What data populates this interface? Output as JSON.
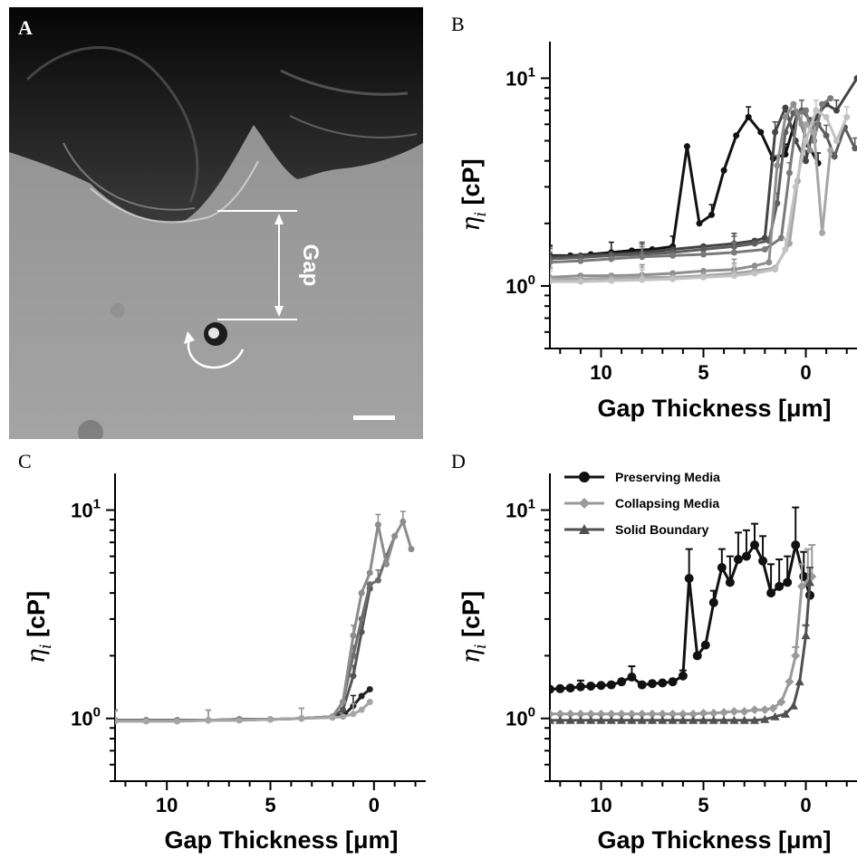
{
  "panels": {
    "A": {
      "letter": "A",
      "gap_label": "Gap"
    },
    "B": {
      "letter": "B"
    },
    "C": {
      "letter": "C"
    },
    "D": {
      "letter": "D"
    }
  },
  "colors": {
    "black": "#111111",
    "dark_gray": "#4a4a4a",
    "mid_gray": "#777777",
    "light_gray": "#a8a8a8",
    "pale_gray": "#c8c8c8"
  },
  "chart_data": [
    {
      "panel": "B",
      "type": "line",
      "xlabel": "Gap Thickness [μm]",
      "ylabel": "η_i [cP]",
      "xlim": [
        12.5,
        -2.5
      ],
      "ylim": [
        0.5,
        15
      ],
      "yscale": "log",
      "xticks": [
        10,
        5,
        0
      ],
      "yticks": [
        {
          "value": 1,
          "base": "10",
          "exp": "0"
        },
        {
          "value": 10,
          "base": "10",
          "exp": "1"
        }
      ],
      "series": [
        {
          "color": "#111111",
          "x": [
            12.5,
            11.5,
            10.5,
            9.5,
            8.5,
            7.5,
            6.5,
            5.8,
            5.2,
            4.6,
            4.0,
            3.4,
            2.8,
            2.2,
            1.6,
            1.0,
            0.4,
            -0.1,
            -0.6
          ],
          "y": [
            1.4,
            1.4,
            1.42,
            1.45,
            1.48,
            1.5,
            1.55,
            4.7,
            2.0,
            2.2,
            3.6,
            5.3,
            6.5,
            5.5,
            4.1,
            4.3,
            6.8,
            4.8,
            3.9
          ]
        },
        {
          "color": "#444444",
          "x": [
            12.5,
            11,
            9.5,
            8,
            6.5,
            5,
            3.5,
            2.5,
            2,
            1.5,
            1.0,
            0.5,
            0,
            -0.5,
            -1,
            -1.5,
            -2.5
          ],
          "y": [
            1.38,
            1.4,
            1.42,
            1.45,
            1.5,
            1.55,
            1.6,
            1.65,
            1.7,
            5.5,
            7.2,
            5.0,
            4.0,
            6.5,
            7.5,
            7.0,
            10.0
          ]
        },
        {
          "color": "#5e5e5e",
          "x": [
            12.5,
            11,
            9.5,
            8,
            6.5,
            5,
            3.5,
            2.5,
            1.8,
            1.4,
            1.0,
            0.6,
            0.2,
            -0.2,
            -0.6,
            -1.0,
            -1.4,
            -1.9,
            -2.4
          ],
          "y": [
            1.35,
            1.37,
            1.4,
            1.42,
            1.45,
            1.5,
            1.55,
            1.6,
            1.65,
            2.5,
            5.5,
            6.8,
            7.0,
            6.3,
            6.0,
            5.3,
            4.2,
            5.8,
            4.6
          ]
        },
        {
          "color": "#7a7a7a",
          "x": [
            12.5,
            11,
            9.5,
            8,
            6.5,
            5,
            3.5,
            2,
            1.2,
            0.8,
            0.4,
            0,
            -0.4,
            -0.8,
            -1.2
          ],
          "y": [
            1.3,
            1.32,
            1.35,
            1.38,
            1.4,
            1.42,
            1.45,
            1.5,
            1.7,
            3.5,
            6.8,
            7.0,
            5.0,
            7.5,
            8.0
          ]
        },
        {
          "color": "#8f8f8f",
          "x": [
            12.5,
            11,
            9.5,
            8,
            6.5,
            5,
            3.5,
            2.5,
            1.8,
            1.4,
            1.0,
            0.6,
            0.2,
            -0.2
          ],
          "y": [
            1.1,
            1.12,
            1.12,
            1.13,
            1.15,
            1.18,
            1.2,
            1.25,
            1.3,
            3.8,
            6.5,
            7.5,
            6.0,
            4.5
          ]
        },
        {
          "color": "#a6a6a6",
          "x": [
            12.5,
            11,
            9.5,
            8,
            6.5,
            5,
            3.5,
            2.5,
            1.5,
            0.8,
            0.4,
            0,
            -0.4,
            -0.8,
            -1.2
          ],
          "y": [
            1.08,
            1.08,
            1.09,
            1.1,
            1.1,
            1.12,
            1.15,
            1.18,
            1.22,
            1.6,
            3.2,
            6.0,
            5.5,
            1.8,
            4.5
          ]
        },
        {
          "color": "#c2c2c2",
          "x": [
            12.5,
            11,
            9.5,
            8,
            6.5,
            5,
            3.5,
            2.5,
            1.5,
            1.0,
            0.5,
            0,
            -0.5,
            -1.0,
            -1.5,
            -2
          ],
          "y": [
            1.05,
            1.05,
            1.06,
            1.07,
            1.08,
            1.1,
            1.12,
            1.15,
            1.2,
            1.5,
            3.0,
            5.0,
            7.0,
            6.5,
            5.0,
            6.5
          ]
        }
      ]
    },
    {
      "panel": "C",
      "type": "line",
      "xlabel": "Gap Thickness [μm]",
      "ylabel": "η_i [cP]",
      "xlim": [
        12.5,
        -2.5
      ],
      "ylim": [
        0.5,
        15
      ],
      "yscale": "log",
      "xticks": [
        10,
        5,
        0
      ],
      "yticks": [
        {
          "value": 1,
          "base": "10",
          "exp": "0"
        },
        {
          "value": 10,
          "base": "10",
          "exp": "1"
        }
      ],
      "series": [
        {
          "color": "#222222",
          "x": [
            12.5,
            11,
            9.5,
            8,
            6.5,
            5,
            3.5,
            2,
            1.4,
            1.0,
            0.6,
            0.2
          ],
          "y": [
            0.98,
            0.98,
            0.98,
            0.98,
            0.99,
            0.99,
            1.0,
            1.02,
            1.05,
            1.15,
            1.28,
            1.38
          ]
        },
        {
          "color": "#555555",
          "x": [
            12.5,
            11,
            9.5,
            8,
            6.5,
            5,
            3.5,
            2,
            1.5,
            1.0,
            0.6,
            0.2
          ],
          "y": [
            0.98,
            0.98,
            0.98,
            0.98,
            0.99,
            0.99,
            1.0,
            1.02,
            1.1,
            1.6,
            2.6,
            4.2
          ]
        },
        {
          "color": "#6e6e6e",
          "x": [
            12.5,
            11,
            9.5,
            8,
            6.5,
            5,
            3.5,
            2,
            1.5,
            1.0,
            0.6,
            0.2,
            -0.2,
            -0.6,
            -1.0
          ],
          "y": [
            0.98,
            0.98,
            0.98,
            0.98,
            0.99,
            0.99,
            1.0,
            1.02,
            1.2,
            2.0,
            3.0,
            4.4,
            4.6,
            6.0,
            7.5
          ]
        },
        {
          "color": "#8c8c8c",
          "x": [
            12.5,
            11,
            9.5,
            8,
            6.5,
            5,
            3.5,
            2,
            1.5,
            1.0,
            0.6,
            0.2,
            -0.2,
            -0.6,
            -1.0,
            -1.4,
            -1.8
          ],
          "y": [
            0.97,
            0.97,
            0.97,
            0.98,
            0.98,
            0.99,
            1.0,
            1.02,
            1.2,
            2.5,
            4.0,
            5.0,
            8.5,
            5.5,
            7.5,
            8.8,
            6.5
          ]
        },
        {
          "color": "#a5a5a5",
          "x": [
            12.5,
            11,
            9.5,
            8,
            6.5,
            5,
            3.5,
            2,
            1.5,
            1.0,
            0.6,
            0.2
          ],
          "y": [
            0.97,
            0.97,
            0.97,
            0.98,
            0.98,
            0.99,
            1.0,
            1.01,
            1.02,
            1.05,
            1.1,
            1.2
          ]
        }
      ]
    },
    {
      "panel": "D",
      "type": "line",
      "xlabel": "Gap Thickness [μm]",
      "ylabel": "η_i [cP]",
      "xlim": [
        12.5,
        -2.5
      ],
      "ylim": [
        0.5,
        15
      ],
      "yscale": "log",
      "xticks": [
        10,
        5,
        0
      ],
      "yticks": [
        {
          "value": 1,
          "base": "10",
          "exp": "0"
        },
        {
          "value": 10,
          "base": "10",
          "exp": "1"
        }
      ],
      "legend_position": "top-left",
      "series": [
        {
          "name": "Preserving Media",
          "color": "#111111",
          "marker": "circle",
          "x": [
            12.5,
            12,
            11.5,
            11,
            10.5,
            10,
            9.5,
            9,
            8.5,
            8,
            7.5,
            7,
            6.5,
            6,
            5.7,
            5.3,
            4.9,
            4.5,
            4.1,
            3.7,
            3.3,
            2.9,
            2.5,
            2.1,
            1.7,
            1.3,
            0.9,
            0.5,
            0.1,
            -0.2
          ],
          "y": [
            1.38,
            1.39,
            1.4,
            1.42,
            1.43,
            1.44,
            1.45,
            1.5,
            1.58,
            1.45,
            1.47,
            1.48,
            1.5,
            1.6,
            4.7,
            2.0,
            2.25,
            3.6,
            5.3,
            4.5,
            5.8,
            6.0,
            6.8,
            5.7,
            4.0,
            4.3,
            4.5,
            6.8,
            4.8,
            3.9
          ],
          "err": [
            0,
            0,
            0,
            0.1,
            0,
            0,
            0,
            0,
            0.2,
            0,
            0,
            0,
            0,
            0.1,
            1.8,
            0,
            0,
            0.5,
            1.2,
            1.5,
            2.0,
            2.0,
            1.8,
            1.8,
            1.5,
            1.5,
            1.5,
            3.5,
            1.5,
            1.0
          ]
        },
        {
          "name": "Collapsing Media",
          "color": "#9a9a9a",
          "marker": "diamond",
          "x": [
            12.5,
            12,
            11.5,
            11,
            10.5,
            10,
            9.5,
            9,
            8.5,
            8,
            7.5,
            7,
            6.5,
            6,
            5.5,
            5,
            4.5,
            4,
            3.5,
            3,
            2.5,
            2,
            1.6,
            1.2,
            0.8,
            0.5,
            0.2,
            -0.1,
            -0.3
          ],
          "y": [
            1.05,
            1.05,
            1.05,
            1.05,
            1.05,
            1.05,
            1.05,
            1.05,
            1.05,
            1.05,
            1.05,
            1.05,
            1.05,
            1.05,
            1.05,
            1.06,
            1.06,
            1.07,
            1.08,
            1.08,
            1.1,
            1.1,
            1.12,
            1.2,
            1.5,
            2.0,
            4.3,
            4.5,
            4.8
          ],
          "err": [
            0,
            0,
            0,
            0,
            0,
            0,
            0,
            0,
            0,
            0,
            0,
            0,
            0,
            0,
            0,
            0,
            0,
            0,
            0,
            0,
            0,
            0,
            0,
            0,
            0,
            0.2,
            1.2,
            2.0,
            2.0
          ]
        },
        {
          "name": "Solid Boundary",
          "color": "#505050",
          "marker": "triangle",
          "x": [
            12.5,
            12,
            11.5,
            11,
            10.5,
            10,
            9.5,
            9,
            8.5,
            8,
            7.5,
            7,
            6.5,
            6,
            5.5,
            5,
            4.5,
            4,
            3.5,
            3,
            2.5,
            2,
            1.5,
            1.0,
            0.6,
            0.3,
            0.0,
            -0.2
          ],
          "y": [
            0.98,
            0.98,
            0.98,
            0.98,
            0.98,
            0.98,
            0.98,
            0.98,
            0.98,
            0.98,
            0.98,
            0.98,
            0.98,
            0.98,
            0.98,
            0.98,
            0.98,
            0.98,
            0.98,
            0.98,
            0.98,
            0.99,
            1.02,
            1.05,
            1.15,
            1.5,
            2.5,
            4.5
          ],
          "err": [
            0,
            0,
            0,
            0,
            0,
            0,
            0,
            0,
            0,
            0,
            0,
            0,
            0,
            0,
            0,
            0,
            0,
            0,
            0,
            0,
            0,
            0,
            0,
            0,
            0,
            0,
            0.3,
            0.8
          ]
        }
      ]
    }
  ]
}
